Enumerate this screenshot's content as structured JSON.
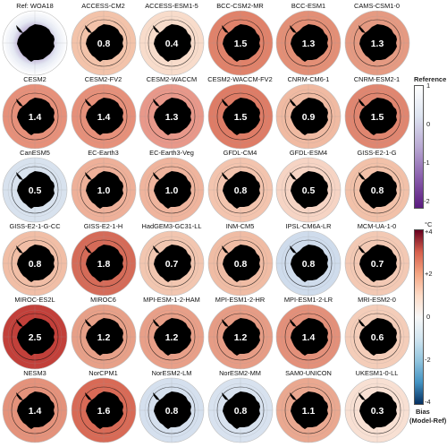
{
  "panels": [
    {
      "label": "Ref: WOA18",
      "bias": "",
      "kind": "ref",
      "fill": "#ffffff"
    },
    {
      "label": "ACCESS-CM2",
      "bias": "0.8",
      "kind": "bias",
      "fill": "#f3c3aa"
    },
    {
      "label": "ACCESS-ESM1-5",
      "bias": "0.4",
      "kind": "bias",
      "fill": "#f8dccb"
    },
    {
      "label": "BCC-CSM2-MR",
      "bias": "1.5",
      "kind": "bias",
      "fill": "#e0826a"
    },
    {
      "label": "BCC-ESM1",
      "bias": "1.3",
      "kind": "bias",
      "fill": "#e38f76"
    },
    {
      "label": "CAMS-CSM1-0",
      "bias": "1.3",
      "kind": "bias",
      "fill": "#e59a82"
    },
    {
      "label": "CESM2",
      "bias": "1.4",
      "kind": "bias",
      "fill": "#e6907a"
    },
    {
      "label": "CESM2-FV2",
      "bias": "1.4",
      "kind": "bias",
      "fill": "#e6907a"
    },
    {
      "label": "CESM2-WACCM",
      "bias": "1.3",
      "kind": "bias",
      "fill": "#e8988a"
    },
    {
      "label": "CESM2-WACCM-FV2",
      "bias": "1.5",
      "kind": "bias",
      "fill": "#de7c66"
    },
    {
      "label": "CNRM-CM6-1",
      "bias": "0.9",
      "kind": "bias",
      "fill": "#f0baa2"
    },
    {
      "label": "CNRM-ESM2-1",
      "bias": "1.5",
      "kind": "bias",
      "fill": "#e08670"
    },
    {
      "label": "CanESM5",
      "bias": "0.5",
      "kind": "bias",
      "fill": "#d8e2ee"
    },
    {
      "label": "EC-Earth3",
      "bias": "1.0",
      "kind": "bias",
      "fill": "#eeb099"
    },
    {
      "label": "EC-Earth3-Veg",
      "bias": "1.0",
      "kind": "bias",
      "fill": "#efb49d"
    },
    {
      "label": "GFDL-CM4",
      "bias": "0.8",
      "kind": "bias",
      "fill": "#f3c4ae"
    },
    {
      "label": "GFDL-ESM4",
      "bias": "0.5",
      "kind": "bias",
      "fill": "#f6d4c4"
    },
    {
      "label": "GISS-E2-1-G",
      "bias": "0.8",
      "kind": "bias",
      "fill": "#f2c1a9"
    },
    {
      "label": "GISS-E2-1-G-CC",
      "bias": "0.8",
      "kind": "bias",
      "fill": "#f1bea6"
    },
    {
      "label": "GISS-E2-1-H",
      "bias": "1.8",
      "kind": "bias",
      "fill": "#d56b58"
    },
    {
      "label": "HadGEM3-GC31-LL",
      "bias": "0.7",
      "kind": "bias",
      "fill": "#f2c6b0"
    },
    {
      "label": "INM-CM5",
      "bias": "0.8",
      "kind": "bias",
      "fill": "#f0bca4"
    },
    {
      "label": "IPSL-CM6A-LR",
      "bias": "0.8",
      "kind": "bias",
      "fill": "#cfdcec"
    },
    {
      "label": "MCM-UA-1-0",
      "bias": "0.7",
      "kind": "bias",
      "fill": "#f3c9b4"
    },
    {
      "label": "MIROC-ES2L",
      "bias": "2.5",
      "kind": "bias",
      "fill": "#c2403a"
    },
    {
      "label": "MIROC6",
      "bias": "1.2",
      "kind": "bias",
      "fill": "#e7a088"
    },
    {
      "label": "MPI-ESM-1-2-HAM",
      "bias": "1.2",
      "kind": "bias",
      "fill": "#e89f88"
    },
    {
      "label": "MPI-ESM1-2-HR",
      "bias": "1.2",
      "kind": "bias",
      "fill": "#e69c85"
    },
    {
      "label": "MPI-ESM1-2-LR",
      "bias": "1.4",
      "kind": "bias",
      "fill": "#e3907a"
    },
    {
      "label": "MRI-ESM2-0",
      "bias": "0.6",
      "kind": "bias",
      "fill": "#f4cdb9"
    },
    {
      "label": "NESM3",
      "bias": "1.4",
      "kind": "bias",
      "fill": "#e4927b"
    },
    {
      "label": "NorCPM1",
      "bias": "1.6",
      "kind": "bias",
      "fill": "#d86a56"
    },
    {
      "label": "NorESM2-LM",
      "bias": "0.8",
      "kind": "bias",
      "fill": "#d5e0ee"
    },
    {
      "label": "NorESM2-MM",
      "bias": "0.8",
      "kind": "bias",
      "fill": "#d8e2ef"
    },
    {
      "label": "SAM0-UNICON",
      "bias": "1.1",
      "kind": "bias",
      "fill": "#eaa890"
    },
    {
      "label": "UKESM1-0-LL",
      "bias": "0.3",
      "kind": "bias",
      "fill": "#f8e0d3"
    }
  ],
  "colorbar_reference": {
    "title": "Reference",
    "ticks": [
      "1",
      "0",
      "-1",
      "-2"
    ],
    "colors": [
      "#ffffff",
      "#dde3f0",
      "#b9a9d3",
      "#8a5fad",
      "#5b1b7f"
    ]
  },
  "colorbar_bias": {
    "unit": "°C",
    "ticks": [
      "+4",
      "+2",
      "0",
      "-2",
      "-4"
    ],
    "title_line1": "Bias",
    "title_line2": "(Model-Ref)",
    "colors": [
      "#67001f",
      "#d6604d",
      "#f4a582",
      "#fddbc7",
      "#f7f7f7",
      "#d1e5f0",
      "#92c5de",
      "#4393c3",
      "#053061"
    ]
  },
  "colors": {
    "land": "#000000",
    "contour": "#111111",
    "grid": "#9a9a9a",
    "bias_text": "#ffffff"
  }
}
